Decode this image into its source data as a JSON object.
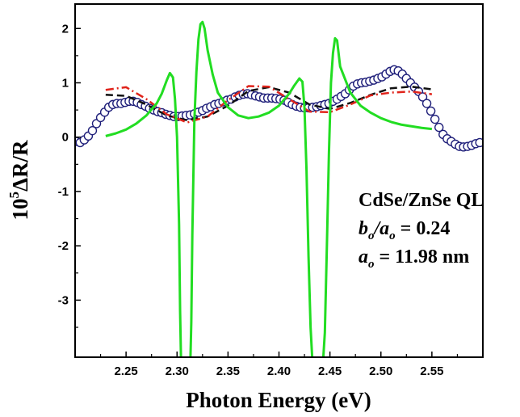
{
  "chart_data": {
    "type": "line",
    "xlabel": "Photon Energy (eV)",
    "ylabel_parts": {
      "base": "10",
      "exp": "5",
      "rest": "ΔR/R"
    },
    "xlim": [
      2.2,
      2.6
    ],
    "ylim": [
      -4.05,
      2.45
    ],
    "x_ticks": [
      {
        "value": 2.25,
        "label": "2.25"
      },
      {
        "value": 2.3,
        "label": "2.30"
      },
      {
        "value": 2.35,
        "label": "2.35"
      },
      {
        "value": 2.4,
        "label": "2.40"
      },
      {
        "value": 2.45,
        "label": "2.45"
      },
      {
        "value": 2.5,
        "label": "2.50"
      },
      {
        "value": 2.55,
        "label": "2.55"
      }
    ],
    "y_ticks": [
      {
        "value": 2,
        "label": "2"
      },
      {
        "value": 1,
        "label": "1"
      },
      {
        "value": 0,
        "label": "0"
      },
      {
        "value": -1,
        "label": "-1"
      },
      {
        "value": -2,
        "label": "-2"
      },
      {
        "value": -3,
        "label": "-3"
      }
    ],
    "annotations": [
      {
        "key": "title",
        "segments": [
          {
            "text": "CdSe/ZnSe QL",
            "italic": false
          }
        ]
      },
      {
        "key": "ratio",
        "segments": [
          {
            "text": "b",
            "italic": true
          },
          {
            "text": "o",
            "italic": true,
            "sub": true
          },
          {
            "text": "/a",
            "italic": true
          },
          {
            "text": "o",
            "italic": true,
            "sub": true
          },
          {
            "text": " = 0.24",
            "italic": false
          }
        ]
      },
      {
        "key": "period",
        "segments": [
          {
            "text": "a",
            "italic": true
          },
          {
            "text": "o",
            "italic": true,
            "sub": true
          },
          {
            "text": " = 11.98 nm",
            "italic": false
          }
        ]
      }
    ],
    "series": [
      {
        "kind": "scatter",
        "style": "open-circles",
        "color": "#1f1f7a",
        "x": [
          2.201,
          2.205,
          2.209,
          2.213,
          2.217,
          2.221,
          2.225,
          2.229,
          2.233,
          2.237,
          2.241,
          2.245,
          2.249,
          2.253,
          2.257,
          2.261,
          2.265,
          2.269,
          2.273,
          2.277,
          2.281,
          2.285,
          2.289,
          2.293,
          2.297,
          2.301,
          2.305,
          2.309,
          2.313,
          2.317,
          2.321,
          2.325,
          2.329,
          2.333,
          2.337,
          2.341,
          2.345,
          2.349,
          2.353,
          2.357,
          2.361,
          2.365,
          2.369,
          2.373,
          2.377,
          2.381,
          2.385,
          2.389,
          2.393,
          2.397,
          2.401,
          2.405,
          2.409,
          2.413,
          2.417,
          2.421,
          2.425,
          2.429,
          2.433,
          2.437,
          2.441,
          2.445,
          2.449,
          2.453,
          2.457,
          2.461,
          2.465,
          2.469,
          2.473,
          2.477,
          2.481,
          2.485,
          2.489,
          2.493,
          2.497,
          2.501,
          2.505,
          2.509,
          2.513,
          2.517,
          2.521,
          2.525,
          2.529,
          2.533,
          2.537,
          2.541,
          2.545,
          2.549,
          2.553,
          2.557,
          2.561,
          2.565,
          2.569,
          2.573,
          2.577,
          2.581,
          2.585,
          2.589,
          2.593,
          2.597
        ],
        "y": [
          -0.08,
          -0.1,
          -0.05,
          0.02,
          0.12,
          0.25,
          0.36,
          0.46,
          0.55,
          0.6,
          0.62,
          0.62,
          0.64,
          0.66,
          0.66,
          0.64,
          0.6,
          0.57,
          0.53,
          0.5,
          0.47,
          0.45,
          0.42,
          0.4,
          0.38,
          0.38,
          0.39,
          0.4,
          0.41,
          0.43,
          0.46,
          0.49,
          0.53,
          0.56,
          0.6,
          0.62,
          0.65,
          0.68,
          0.7,
          0.74,
          0.77,
          0.79,
          0.8,
          0.78,
          0.76,
          0.74,
          0.72,
          0.72,
          0.72,
          0.71,
          0.7,
          0.68,
          0.64,
          0.6,
          0.57,
          0.55,
          0.54,
          0.54,
          0.55,
          0.56,
          0.58,
          0.6,
          0.62,
          0.66,
          0.7,
          0.75,
          0.8,
          0.87,
          0.94,
          0.98,
          1.0,
          1.01,
          1.03,
          1.05,
          1.08,
          1.11,
          1.16,
          1.21,
          1.24,
          1.22,
          1.16,
          1.08,
          1.0,
          0.92,
          0.84,
          0.74,
          0.62,
          0.48,
          0.33,
          0.18,
          0.05,
          -0.03,
          -0.08,
          -0.13,
          -0.17,
          -0.18,
          -0.17,
          -0.15,
          -0.12,
          -0.1
        ]
      },
      {
        "kind": "line",
        "style": "dashed",
        "color": "#111111",
        "x": [
          2.23,
          2.25,
          2.27,
          2.29,
          2.31,
          2.33,
          2.35,
          2.37,
          2.39,
          2.41,
          2.43,
          2.45,
          2.47,
          2.49,
          2.51,
          2.53,
          2.55
        ],
        "y": [
          0.78,
          0.76,
          0.6,
          0.4,
          0.31,
          0.38,
          0.58,
          0.85,
          0.92,
          0.82,
          0.6,
          0.52,
          0.63,
          0.78,
          0.9,
          0.93,
          0.88
        ]
      },
      {
        "kind": "line",
        "style": "dash-dot",
        "color": "#e0241b",
        "x": [
          2.23,
          2.25,
          2.27,
          2.29,
          2.31,
          2.33,
          2.35,
          2.37,
          2.39,
          2.41,
          2.43,
          2.45,
          2.47,
          2.49,
          2.51,
          2.53,
          2.55
        ],
        "y": [
          0.87,
          0.92,
          0.7,
          0.42,
          0.27,
          0.38,
          0.68,
          0.94,
          0.93,
          0.7,
          0.47,
          0.46,
          0.6,
          0.77,
          0.82,
          0.84,
          0.79
        ]
      },
      {
        "kind": "line",
        "style": "solid",
        "color": "#22dd22",
        "x": [
          2.23,
          2.24,
          2.25,
          2.26,
          2.27,
          2.28,
          2.285,
          2.29,
          2.293,
          2.296,
          2.298,
          2.3,
          2.302,
          2.303,
          2.304,
          2.306,
          2.308,
          2.311,
          2.313,
          2.314,
          2.315,
          2.317,
          2.319,
          2.321,
          2.323,
          2.325,
          2.327,
          2.33,
          2.335,
          2.34,
          2.35,
          2.36,
          2.37,
          2.38,
          2.39,
          2.4,
          2.41,
          2.415,
          2.42,
          2.423,
          2.425,
          2.427,
          2.429,
          2.431,
          2.433,
          2.435,
          2.437,
          2.439,
          2.441,
          2.443,
          2.445,
          2.447,
          2.449,
          2.451,
          2.453,
          2.455,
          2.457,
          2.46,
          2.47,
          2.48,
          2.49,
          2.5,
          2.51,
          2.52,
          2.53,
          2.54,
          2.55
        ],
        "y": [
          0.02,
          0.07,
          0.14,
          0.25,
          0.4,
          0.62,
          0.8,
          1.05,
          1.18,
          1.1,
          0.7,
          0.0,
          -1.6,
          -3.2,
          -4.2,
          -4.2,
          -4.2,
          -4.2,
          -4.2,
          -3.4,
          -1.8,
          0.3,
          1.2,
          1.8,
          2.08,
          2.12,
          2.0,
          1.6,
          1.15,
          0.82,
          0.55,
          0.4,
          0.35,
          0.38,
          0.45,
          0.58,
          0.8,
          0.95,
          1.08,
          1.02,
          0.55,
          -0.6,
          -2.2,
          -3.5,
          -4.2,
          -4.2,
          -4.2,
          -4.2,
          -4.2,
          -4.2,
          -3.6,
          -2.0,
          -0.3,
          1.0,
          1.55,
          1.82,
          1.78,
          1.3,
          0.82,
          0.58,
          0.45,
          0.35,
          0.28,
          0.23,
          0.2,
          0.17,
          0.15
        ]
      }
    ]
  }
}
